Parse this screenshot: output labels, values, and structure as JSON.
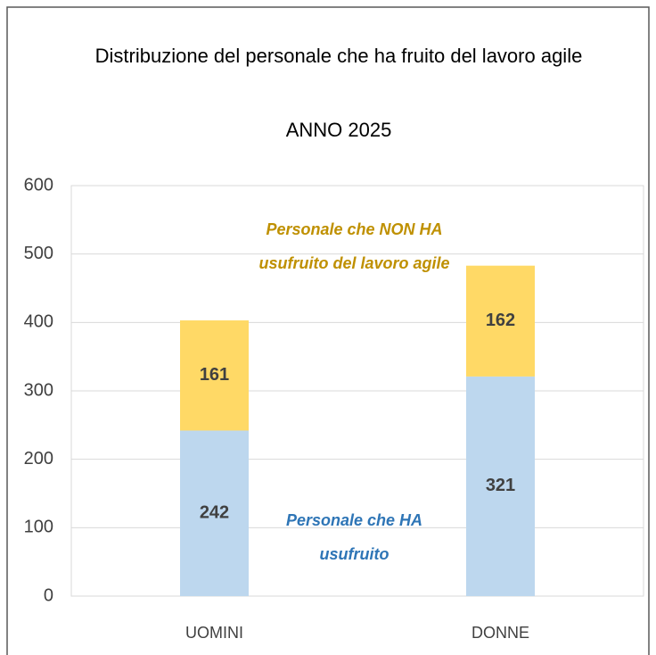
{
  "chart_data": {
    "type": "stacked_bar",
    "title": "Distribuzione del personale che ha fruito del lavoro agile",
    "subtitle": "ANNO 2025",
    "categories": [
      "UOMINI",
      "DONNE"
    ],
    "series": [
      {
        "name": "Personale che HA usufruito",
        "color": "#bdd7ee",
        "label_color": "#2e75b6",
        "values": [
          242,
          321
        ]
      },
      {
        "name": "Personale che NON HA usufruito del lavoro agile",
        "color": "#ffd966",
        "label_color": "#bf9000",
        "values": [
          161,
          162
        ]
      }
    ],
    "ylim": [
      0,
      600
    ],
    "yticks": [
      0,
      100,
      200,
      300,
      400,
      500,
      600
    ],
    "grid": true
  }
}
